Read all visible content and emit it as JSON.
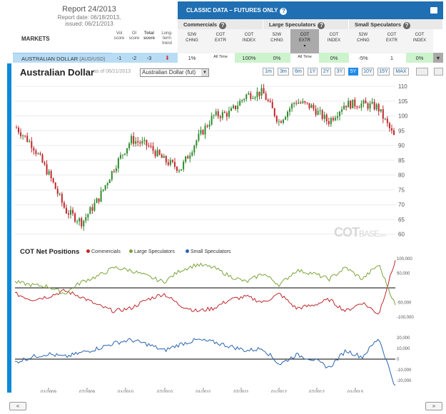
{
  "report": {
    "title": "Report 24/2013",
    "report_date": "Report date: 06/18/2013,",
    "issued": "issued: 06/21/2013"
  },
  "markets_header": {
    "label": "MARKETS",
    "vol_score": "Vol score",
    "oi_score": "OI score",
    "total_score": "Total score",
    "long_term_trend": "Long-term trend"
  },
  "panel": {
    "title": "CLASSIC DATA – FUTURES ONLY",
    "help_icon": "question-icon",
    "groups": [
      "Commercials",
      "Large Speculators",
      "Small Speculators"
    ],
    "sub_headers": [
      [
        "52W",
        "CHNG"
      ],
      [
        "COT",
        "EXTR"
      ],
      [
        "COT",
        "INDEX"
      ],
      [
        "52W",
        "CHNG"
      ],
      [
        "COT",
        "EXTR"
      ],
      [
        "COT",
        "INDEX"
      ],
      [
        "52W",
        "CHNG"
      ],
      [
        "COT",
        "EXTR"
      ],
      [
        "COT",
        "INDEX"
      ]
    ]
  },
  "row": {
    "name": "AUSTRALIAN DOLLAR",
    "ticker": "(AUD/USD)",
    "vol": "-1",
    "oi": "-2",
    "total": "-3",
    "trend": "down-arrow",
    "comm_chng": "1%",
    "comm_extr": "All Time",
    "comm_index": "100%",
    "large_chng": "0%",
    "large_extr": "All Time",
    "large_index": "0%",
    "small_chng": "-5%",
    "small_extr": "1",
    "small_index": "0%"
  },
  "chart": {
    "title": "Australian Dollar",
    "as_of": "as of 06/21/2013",
    "contract_select": "Australian Dollar (fut)",
    "zoom_buttons": [
      "1m",
      "3m",
      "6m",
      "1Y",
      "2Y",
      "3Y",
      "5Y",
      "10Y",
      "15Y",
      "MAX"
    ],
    "active_zoom": "5Y",
    "watermark": {
      "cot": "COT",
      "base": "BASE",
      "com": ".com"
    },
    "cot_title": "COT Net Positions",
    "legend": [
      "Commercials",
      "Large Speculators",
      "Small Speculators"
    ],
    "colors": {
      "commercials": "#c0282d",
      "large": "#7aa53a",
      "small": "#2a64b0",
      "accent": "#1f6fb2"
    },
    "nav_prev": "«",
    "nav_next": "»"
  },
  "chart_data": [
    {
      "type": "candlestick",
      "title": "Australian Dollar",
      "y_ticks": [
        60,
        65,
        70,
        75,
        80,
        85,
        90,
        95,
        100,
        105,
        110
      ],
      "ylim": [
        58,
        111
      ],
      "x": [
        "2008-07",
        "2008-09",
        "2008-10",
        "2008-12",
        "2009-02",
        "2009-05",
        "2009-08",
        "2009-11",
        "2010-02",
        "2010-05",
        "2010-06",
        "2010-09",
        "2010-12",
        "2011-02",
        "2011-04",
        "2011-07",
        "2011-10",
        "2012-01",
        "2012-04",
        "2012-07",
        "2012-10",
        "2013-01",
        "2013-04",
        "2013-06"
      ],
      "values": [
        96,
        90,
        80,
        68,
        64,
        72,
        83,
        92,
        90,
        85,
        82,
        92,
        100,
        101,
        107,
        108,
        98,
        105,
        103,
        98,
        104,
        104,
        103,
        93
      ]
    },
    {
      "type": "line",
      "title": "COT Net Positions",
      "y_ticks": [
        -100000,
        -50000,
        0,
        50000,
        100000
      ],
      "x_ticks": [
        "01/2009",
        "07/2009",
        "01/2010",
        "07/2010",
        "01/2011",
        "07/2011",
        "01/2012",
        "07/2012",
        "01/2013"
      ],
      "series": [
        {
          "name": "Commercials",
          "values": [
            -20000,
            -40000,
            -30000,
            -10000,
            -30000,
            -60000,
            -80000,
            -70000,
            -40000,
            -20000,
            -60000,
            -80000,
            -70000,
            -40000,
            -30000,
            -50000,
            -20000,
            -70000,
            -60000,
            -40000,
            -80000,
            -50000,
            -90000,
            95000
          ]
        },
        {
          "name": "Large Speculators",
          "values": [
            20000,
            10000,
            5000,
            -20000,
            20000,
            40000,
            70000,
            60000,
            40000,
            20000,
            60000,
            80000,
            70000,
            40000,
            20000,
            50000,
            10000,
            60000,
            50000,
            30000,
            70000,
            30000,
            80000,
            -60000
          ]
        }
      ]
    },
    {
      "type": "line",
      "title": "",
      "y_ticks": [
        -20000,
        -10000,
        0,
        10000,
        20000
      ],
      "series": [
        {
          "name": "Small Speculators",
          "values": [
            -3000,
            2000,
            5000,
            2000,
            6000,
            10000,
            15000,
            18000,
            14000,
            8000,
            14000,
            18000,
            16000,
            12000,
            8000,
            10000,
            -5000,
            4000,
            0,
            -8000,
            8000,
            2000,
            20000,
            -26000
          ]
        }
      ]
    }
  ]
}
